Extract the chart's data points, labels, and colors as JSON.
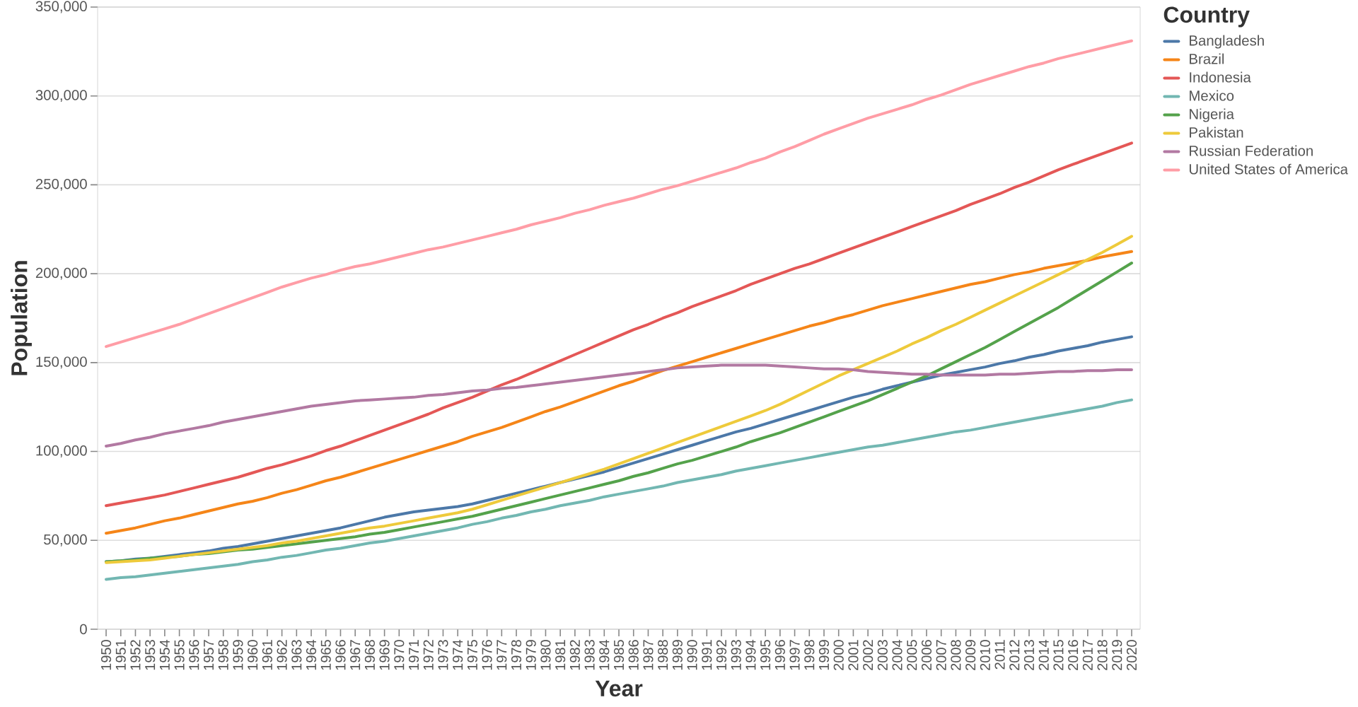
{
  "chart_data": {
    "type": "line",
    "xlabel": "Year",
    "ylabel": "Population",
    "legend_title": "Country",
    "legend": "top right",
    "grid": "y",
    "categories": [
      "1950",
      "1951",
      "1952",
      "1953",
      "1954",
      "1955",
      "1956",
      "1957",
      "1958",
      "1959",
      "1960",
      "1961",
      "1962",
      "1963",
      "1964",
      "1965",
      "1966",
      "1967",
      "1968",
      "1969",
      "1970",
      "1971",
      "1972",
      "1973",
      "1974",
      "1975",
      "1976",
      "1977",
      "1978",
      "1979",
      "1980",
      "1981",
      "1982",
      "1983",
      "1984",
      "1985",
      "1986",
      "1987",
      "1988",
      "1989",
      "1990",
      "1991",
      "1992",
      "1993",
      "1994",
      "1995",
      "1996",
      "1997",
      "1998",
      "1999",
      "2000",
      "2001",
      "2002",
      "2003",
      "2004",
      "2005",
      "2006",
      "2007",
      "2008",
      "2009",
      "2010",
      "2011",
      "2012",
      "2013",
      "2014",
      "2015",
      "2016",
      "2017",
      "2018",
      "2019",
      "2020"
    ],
    "ylim": [
      0,
      350000
    ],
    "yticks": [
      0,
      {
        "value": 50000,
        "label": "50,000"
      },
      {
        "value": 100000,
        "label": "100,000"
      },
      {
        "value": 150000,
        "label": "150,000"
      },
      {
        "value": 200000,
        "label": "200,000"
      },
      {
        "value": 250000,
        "label": "250,000"
      },
      {
        "value": 300000,
        "label": "300,000"
      },
      {
        "value": 350000,
        "label": "350,000"
      }
    ],
    "series": [
      {
        "name": "Bangladesh",
        "color": "#4c78a8",
        "values": [
          38000,
          38500,
          39500,
          40000,
          41000,
          42000,
          43000,
          44000,
          45500,
          46500,
          48000,
          49500,
          51000,
          52500,
          54000,
          55500,
          57000,
          59000,
          61000,
          63000,
          64500,
          66000,
          67000,
          68000,
          69000,
          70500,
          72500,
          74500,
          76500,
          78500,
          80500,
          82500,
          84500,
          86500,
          88500,
          91000,
          93500,
          96000,
          98500,
          101000,
          103500,
          106000,
          108500,
          111000,
          113000,
          115500,
          118000,
          120500,
          123000,
          125500,
          128000,
          130500,
          132500,
          135000,
          137000,
          139000,
          141000,
          143000,
          144500,
          146000,
          147500,
          149500,
          151000,
          153000,
          154500,
          156500,
          158000,
          159500,
          161500,
          163000,
          164500
        ]
      },
      {
        "name": "Brazil",
        "color": "#f58518",
        "values": [
          54000,
          55500,
          57000,
          59000,
          61000,
          62500,
          64500,
          66500,
          68500,
          70500,
          72000,
          74000,
          76500,
          78500,
          81000,
          83500,
          85500,
          88000,
          90500,
          93000,
          95500,
          98000,
          100500,
          103000,
          105500,
          108500,
          111000,
          113500,
          116500,
          119500,
          122500,
          125000,
          128000,
          131000,
          134000,
          137000,
          139500,
          142500,
          145500,
          148000,
          150500,
          153000,
          155500,
          158000,
          160500,
          163000,
          165500,
          168000,
          170500,
          172500,
          175000,
          177000,
          179500,
          182000,
          184000,
          186000,
          188000,
          190000,
          192000,
          194000,
          195500,
          197500,
          199500,
          201000,
          203000,
          204500,
          206000,
          207500,
          209500,
          211000,
          212500
        ]
      },
      {
        "name": "Indonesia",
        "color": "#e45756",
        "values": [
          69500,
          71000,
          72500,
          74000,
          75500,
          77500,
          79500,
          81500,
          83500,
          85500,
          88000,
          90500,
          92500,
          95000,
          97500,
          100500,
          103000,
          106000,
          109000,
          112000,
          115000,
          118000,
          121000,
          124500,
          127500,
          130500,
          134000,
          137500,
          140500,
          144000,
          147500,
          151000,
          154500,
          158000,
          161500,
          165000,
          168500,
          171500,
          175000,
          178000,
          181500,
          184500,
          187500,
          190500,
          194000,
          197000,
          200000,
          203000,
          205500,
          208500,
          211500,
          214500,
          217500,
          220500,
          223500,
          226500,
          229500,
          232500,
          235500,
          239000,
          242000,
          245000,
          248500,
          251500,
          255000,
          258500,
          261500,
          264500,
          267500,
          270500,
          273500
        ]
      },
      {
        "name": "Mexico",
        "color": "#72b7b2",
        "values": [
          28000,
          29000,
          29500,
          30500,
          31500,
          32500,
          33500,
          34500,
          35500,
          36500,
          38000,
          39000,
          40500,
          41500,
          43000,
          44500,
          45500,
          47000,
          48500,
          49500,
          51000,
          52500,
          54000,
          55500,
          57000,
          59000,
          60500,
          62500,
          64000,
          66000,
          67500,
          69500,
          71000,
          72500,
          74500,
          76000,
          77500,
          79000,
          80500,
          82500,
          84000,
          85500,
          87000,
          89000,
          90500,
          92000,
          93500,
          95000,
          96500,
          98000,
          99500,
          101000,
          102500,
          103500,
          105000,
          106500,
          108000,
          109500,
          111000,
          112000,
          113500,
          115000,
          116500,
          118000,
          119500,
          121000,
          122500,
          124000,
          125500,
          127500,
          129000
        ]
      },
      {
        "name": "Nigeria",
        "color": "#54a24b",
        "values": [
          38000,
          38500,
          39000,
          40000,
          40500,
          41000,
          42000,
          42500,
          43500,
          44500,
          45000,
          46000,
          47000,
          48000,
          49000,
          50000,
          51000,
          52000,
          53500,
          54500,
          56000,
          57500,
          59000,
          60500,
          62000,
          63500,
          65500,
          67500,
          69500,
          71500,
          73500,
          75500,
          77500,
          79500,
          81500,
          83500,
          86000,
          88000,
          90500,
          93000,
          95000,
          97500,
          100000,
          102500,
          105500,
          108000,
          110500,
          113500,
          116500,
          119500,
          122500,
          125500,
          128500,
          132000,
          135500,
          139000,
          142500,
          146500,
          150500,
          154500,
          158500,
          163000,
          167500,
          172000,
          176500,
          181000,
          186000,
          191000,
          196000,
          201000,
          206000
        ]
      },
      {
        "name": "Pakistan",
        "color": "#eeca3b",
        "values": [
          37500,
          38000,
          38500,
          39000,
          40000,
          41000,
          42000,
          43000,
          44000,
          45000,
          46000,
          47000,
          48500,
          49500,
          51000,
          52500,
          54000,
          55500,
          57000,
          58000,
          59500,
          61000,
          62500,
          64000,
          65500,
          67500,
          70000,
          72500,
          75000,
          77500,
          80000,
          82500,
          85000,
          87500,
          90000,
          93000,
          96000,
          99000,
          102000,
          105000,
          108000,
          111000,
          114000,
          117000,
          120000,
          123000,
          126500,
          130500,
          134500,
          138500,
          142500,
          146000,
          149500,
          153000,
          156500,
          160500,
          164000,
          168000,
          171500,
          175500,
          179500,
          183500,
          187500,
          191500,
          195500,
          199500,
          203500,
          208000,
          212000,
          216500,
          221000
        ]
      },
      {
        "name": "Russian Federation",
        "color": "#b279a2",
        "values": [
          103000,
          104500,
          106500,
          108000,
          110000,
          111500,
          113000,
          114500,
          116500,
          118000,
          119500,
          121000,
          122500,
          124000,
          125500,
          126500,
          127500,
          128500,
          129000,
          129500,
          130000,
          130500,
          131500,
          132000,
          133000,
          134000,
          134500,
          135500,
          136000,
          137000,
          138000,
          139000,
          140000,
          141000,
          142000,
          143000,
          144000,
          145000,
          146000,
          147000,
          147500,
          148000,
          148500,
          148500,
          148500,
          148500,
          148000,
          147500,
          147000,
          146500,
          146500,
          146000,
          145000,
          144500,
          144000,
          143500,
          143500,
          143000,
          143000,
          143000,
          143000,
          143500,
          143500,
          144000,
          144500,
          145000,
          145000,
          145500,
          145500,
          146000,
          146000
        ]
      },
      {
        "name": "United States of America",
        "color": "#ff9da6",
        "values": [
          159000,
          161500,
          164000,
          166500,
          169000,
          171500,
          174500,
          177500,
          180500,
          183500,
          186500,
          189500,
          192500,
          195000,
          197500,
          199500,
          202000,
          204000,
          205500,
          207500,
          209500,
          211500,
          213500,
          215000,
          217000,
          219000,
          221000,
          223000,
          225000,
          227500,
          229500,
          231500,
          234000,
          236000,
          238500,
          240500,
          242500,
          245000,
          247500,
          249500,
          252000,
          254500,
          257000,
          259500,
          262500,
          265000,
          268500,
          271500,
          275000,
          278500,
          281500,
          284500,
          287500,
          290000,
          292500,
          295000,
          298000,
          300500,
          303500,
          306500,
          309000,
          311500,
          314000,
          316500,
          318500,
          321000,
          323000,
          325000,
          327000,
          329000,
          331000
        ]
      }
    ]
  }
}
